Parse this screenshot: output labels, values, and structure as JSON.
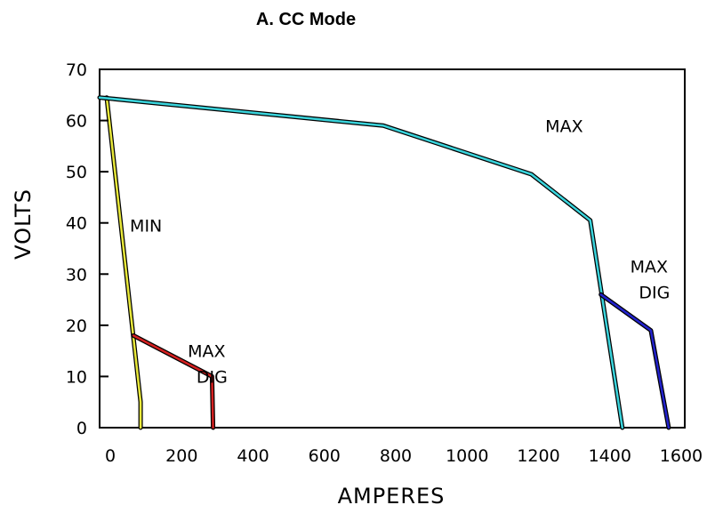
{
  "chart_data": {
    "type": "line",
    "title": "A.   CC Mode",
    "xlabel": "AMPERES",
    "ylabel": "VOLTS",
    "xlim": [
      -30,
      1610
    ],
    "ylim": [
      0,
      70
    ],
    "x_ticks": [
      "0",
      "200",
      "400",
      "600",
      "800",
      "1000",
      "1200",
      "1400",
      "1600"
    ],
    "x_tick_values": [
      0,
      200,
      400,
      600,
      800,
      1000,
      1200,
      1400,
      1600
    ],
    "y_ticks": [
      "0",
      "10",
      "20",
      "30",
      "40",
      "50",
      "60",
      "70"
    ],
    "y_tick_values": [
      0,
      10,
      20,
      30,
      40,
      50,
      60,
      70
    ],
    "grid": false,
    "series": [
      {
        "color": "#e8e83a",
        "points": [
          [
            -10,
            64.5
          ],
          [
            85,
            5
          ],
          [
            85,
            0
          ]
        ]
      },
      {
        "color": "#d42020",
        "points": [
          [
            65,
            18
          ],
          [
            285,
            10
          ],
          [
            288,
            0
          ]
        ]
      },
      {
        "color": "#3ad4dc",
        "points": [
          [
            -30,
            64.5
          ],
          [
            765,
            59
          ],
          [
            1180,
            49.5
          ],
          [
            1345,
            40.5
          ],
          [
            1435,
            0
          ]
        ]
      },
      {
        "color": "#2222cc",
        "points": [
          [
            1375,
            26
          ],
          [
            1515,
            19
          ],
          [
            1565,
            0
          ]
        ]
      }
    ],
    "annotations": [
      {
        "text": "MIN",
        "x": 100,
        "y": 39.5,
        "anchor": "middle"
      },
      {
        "text": "MAX",
        "x": 270,
        "y": 15,
        "anchor": "middle"
      },
      {
        "text": "DIG",
        "x": 285,
        "y": 10,
        "anchor": "middle"
      },
      {
        "text": "MAX",
        "x": 1272,
        "y": 59,
        "anchor": "middle"
      },
      {
        "text": "MAX",
        "x": 1510,
        "y": 31.5,
        "anchor": "middle"
      },
      {
        "text": "DIG",
        "x": 1525,
        "y": 26.5,
        "anchor": "middle"
      }
    ]
  }
}
